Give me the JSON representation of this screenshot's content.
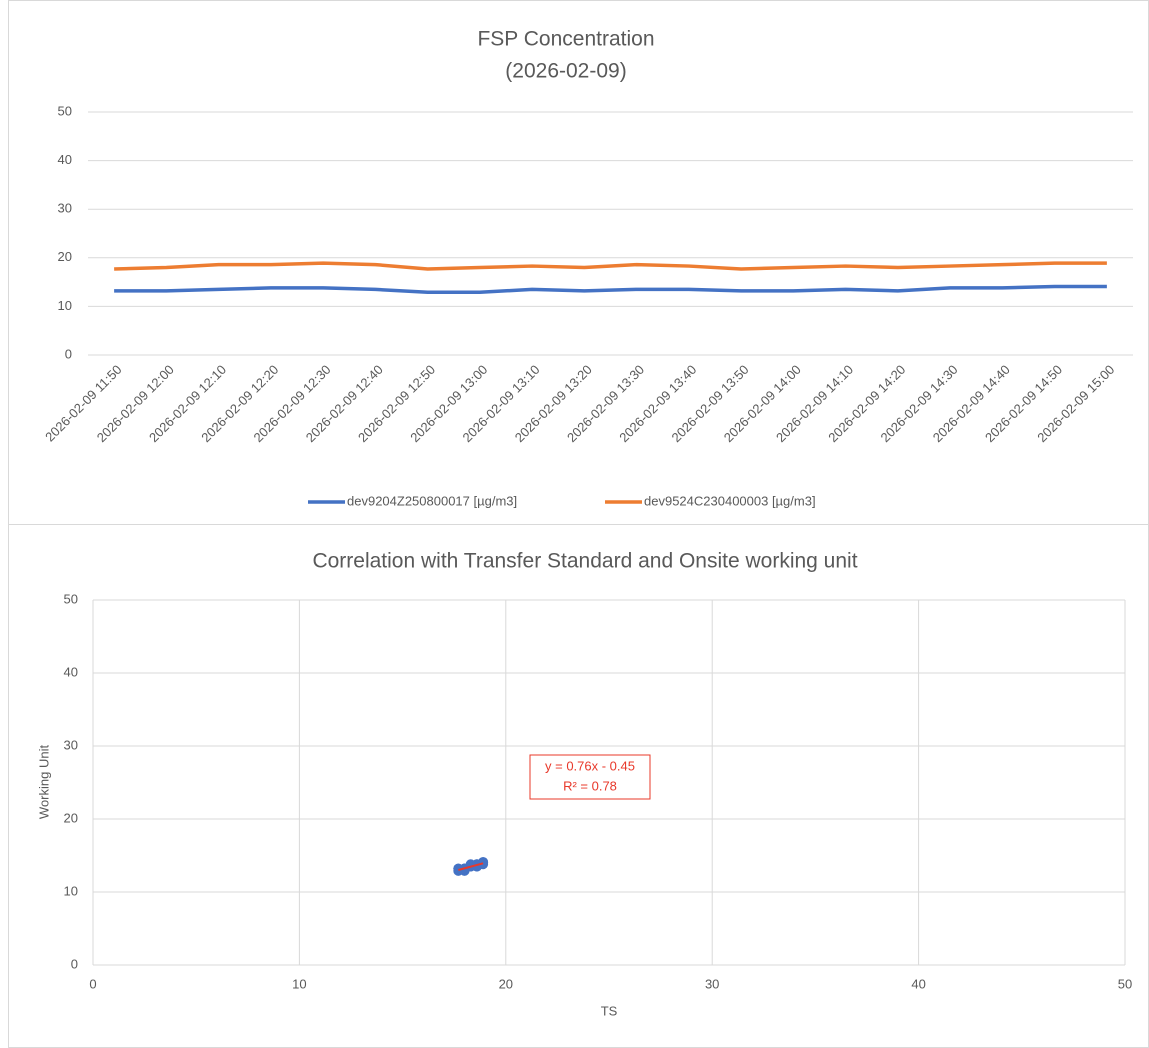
{
  "chart_data": [
    {
      "type": "line",
      "title": [
        "FSP Concentration",
        "(2026-02-09)"
      ],
      "categories": [
        "2026-02-09 11:50",
        "2026-02-09 12:00",
        "2026-02-09 12:10",
        "2026-02-09 12:20",
        "2026-02-09 12:30",
        "2026-02-09 12:40",
        "2026-02-09 12:50",
        "2026-02-09 13:00",
        "2026-02-09 13:10",
        "2026-02-09 13:20",
        "2026-02-09 13:30",
        "2026-02-09 13:40",
        "2026-02-09 13:50",
        "2026-02-09 14:00",
        "2026-02-09 14:10",
        "2026-02-09 14:20",
        "2026-02-09 14:30",
        "2026-02-09 14:40",
        "2026-02-09 14:50",
        "2026-02-09 15:00"
      ],
      "series": [
        {
          "name": "dev9204Z250800017 [µg/m3]",
          "color": "#4472c4",
          "values": [
            13.2,
            13.2,
            13.5,
            13.8,
            13.8,
            13.5,
            12.9,
            12.9,
            13.5,
            13.2,
            13.5,
            13.5,
            13.2,
            13.2,
            13.5,
            13.2,
            13.8,
            13.8,
            14.1,
            14.1
          ]
        },
        {
          "name": "dev9524C230400003 [µg/m3]",
          "color": "#ed7d31",
          "values": [
            17.7,
            18.0,
            18.6,
            18.6,
            18.9,
            18.6,
            17.7,
            18.0,
            18.3,
            18.0,
            18.6,
            18.3,
            17.7,
            18.0,
            18.3,
            18.0,
            18.3,
            18.6,
            18.9,
            18.9
          ]
        }
      ],
      "ylim": [
        0,
        50
      ],
      "yticks": [
        0,
        10,
        20,
        30,
        40,
        50
      ],
      "grid": true,
      "legend": "bottom"
    },
    {
      "type": "scatter",
      "title": "Correlation with Transfer Standard and Onsite working unit",
      "x_label": "TS",
      "y_label": "Working Unit",
      "x": [
        17.7,
        18.0,
        18.6,
        18.6,
        18.9,
        18.6,
        17.7,
        18.0,
        18.3,
        18.0,
        18.6,
        18.3,
        17.7,
        18.0,
        18.3,
        18.0,
        18.3,
        18.6,
        18.9,
        18.9
      ],
      "values": [
        13.2,
        13.2,
        13.5,
        13.8,
        13.8,
        13.5,
        12.9,
        12.9,
        13.5,
        13.2,
        13.5,
        13.5,
        13.2,
        13.2,
        13.5,
        13.2,
        13.8,
        13.8,
        14.1,
        14.1
      ],
      "color": "#4472c4",
      "trendline_color": "#e8382a",
      "annotation": [
        "y = 0.76x - 0.45",
        "R² = 0.78"
      ],
      "xlim": [
        0,
        50
      ],
      "xticks": [
        0,
        10,
        20,
        30,
        40,
        50
      ],
      "ylim": [
        0,
        50
      ],
      "yticks": [
        0,
        10,
        20,
        30,
        40,
        50
      ],
      "grid": true
    }
  ]
}
